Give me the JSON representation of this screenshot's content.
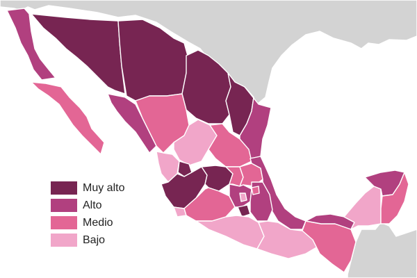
{
  "colors": {
    "background": "#ffffff",
    "neighbor_land": "#d3d3d3",
    "muy_alto": "#772552",
    "alto": "#b1407f",
    "medio": "#e36695",
    "bajo": "#f1a6c9"
  },
  "legend": {
    "items": [
      {
        "label": "Muy alto",
        "level": "muy_alto",
        "color": "#772552"
      },
      {
        "label": "Alto",
        "level": "alto",
        "color": "#b1407f"
      },
      {
        "label": "Medio",
        "level": "medio",
        "color": "#e36695"
      },
      {
        "label": "Bajo",
        "level": "bajo",
        "color": "#f1a6c9"
      }
    ]
  },
  "regions": [
    {
      "name": "Baja California",
      "level": "alto"
    },
    {
      "name": "Baja California Sur",
      "level": "medio"
    },
    {
      "name": "Sonora",
      "level": "muy_alto"
    },
    {
      "name": "Chihuahua",
      "level": "muy_alto"
    },
    {
      "name": "Coahuila",
      "level": "muy_alto"
    },
    {
      "name": "Nuevo León",
      "level": "muy_alto"
    },
    {
      "name": "Tamaulipas",
      "level": "alto"
    },
    {
      "name": "Sinaloa",
      "level": "alto"
    },
    {
      "name": "Durango",
      "level": "medio"
    },
    {
      "name": "Zacatecas",
      "level": "bajo"
    },
    {
      "name": "San Luis Potosí",
      "level": "medio"
    },
    {
      "name": "Nayarit",
      "level": "bajo"
    },
    {
      "name": "Aguascalientes",
      "level": "muy_alto"
    },
    {
      "name": "Jalisco",
      "level": "muy_alto"
    },
    {
      "name": "Guanajuato",
      "level": "muy_alto"
    },
    {
      "name": "Querétaro",
      "level": "medio"
    },
    {
      "name": "Hidalgo",
      "level": "medio"
    },
    {
      "name": "Veracruz",
      "level": "alto"
    },
    {
      "name": "Colima",
      "level": "bajo"
    },
    {
      "name": "Michoacán",
      "level": "medio"
    },
    {
      "name": "Estado de México",
      "level": "alto"
    },
    {
      "name": "Ciudad de México",
      "level": "bajo"
    },
    {
      "name": "Morelos",
      "level": "muy_alto"
    },
    {
      "name": "Puebla",
      "level": "alto"
    },
    {
      "name": "Tlaxcala",
      "level": "medio"
    },
    {
      "name": "Guerrero",
      "level": "bajo"
    },
    {
      "name": "Oaxaca",
      "level": "bajo"
    },
    {
      "name": "Chiapas",
      "level": "medio"
    },
    {
      "name": "Tabasco",
      "level": "alto"
    },
    {
      "name": "Campeche",
      "level": "bajo"
    },
    {
      "name": "Yucatán",
      "level": "alto"
    },
    {
      "name": "Quintana Roo",
      "level": "medio"
    }
  ]
}
